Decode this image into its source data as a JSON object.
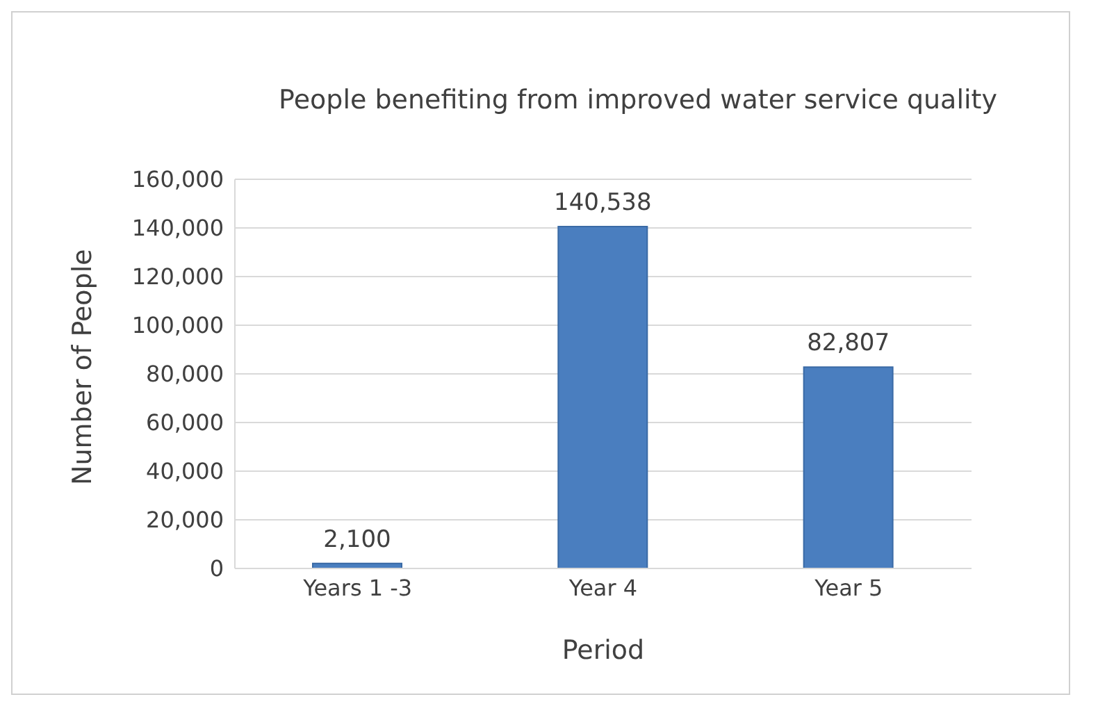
{
  "chart_data": {
    "type": "bar",
    "title": "People benefiting from improved water service quality",
    "xlabel": "Period",
    "ylabel": "Number of People",
    "categories": [
      "Years 1 -3",
      "Year 4",
      "Year 5"
    ],
    "values": [
      2100,
      140538,
      82807
    ],
    "value_labels": [
      "2,100",
      "140,538",
      "82,807"
    ],
    "color": "#4a7ebf",
    "ylim": [
      0,
      160000
    ],
    "yticks": [
      {
        "value": 0,
        "label": "0"
      },
      {
        "value": 20000,
        "label": "20,000"
      },
      {
        "value": 40000,
        "label": "40,000"
      },
      {
        "value": 60000,
        "label": "60,000"
      },
      {
        "value": 80000,
        "label": "80,000"
      },
      {
        "value": 100000,
        "label": "100,000"
      },
      {
        "value": 120000,
        "label": "120,000"
      },
      {
        "value": 140000,
        "label": "140,000"
      },
      {
        "value": 160000,
        "label": "160,000"
      }
    ],
    "grid": "y"
  }
}
